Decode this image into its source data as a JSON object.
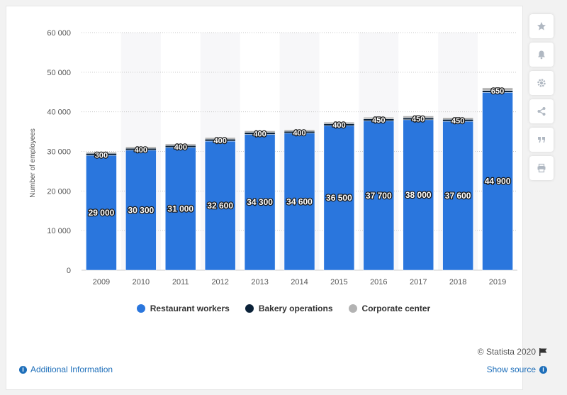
{
  "chart_data": {
    "type": "bar",
    "stacked": true,
    "categories": [
      "2009",
      "2010",
      "2011",
      "2012",
      "2013",
      "2014",
      "2015",
      "2016",
      "2017",
      "2018",
      "2019"
    ],
    "series": [
      {
        "name": "Restaurant workers",
        "color": "#2a76dd",
        "values": [
          29000,
          30300,
          31000,
          32600,
          34300,
          34600,
          36500,
          37700,
          38000,
          37600,
          44900
        ]
      },
      {
        "name": "Bakery operations",
        "color": "#0b2239",
        "values": [
          500,
          500,
          500,
          500,
          500,
          500,
          500,
          500,
          500,
          500,
          500
        ]
      },
      {
        "name": "Corporate center",
        "color": "#b3b3b3",
        "values": [
          300,
          400,
          400,
          400,
          400,
          400,
          400,
          450,
          450,
          450,
          650
        ]
      }
    ],
    "data_labels": {
      "restaurant": [
        "29 000",
        "30 300",
        "31 000",
        "32 600",
        "34 300",
        "34 600",
        "36 500",
        "37 700",
        "38 000",
        "37 600",
        "44 900"
      ],
      "corporate": [
        "300",
        "400",
        "400",
        "400",
        "400",
        "400",
        "400",
        "450",
        "450",
        "450",
        "650"
      ]
    },
    "ylabel": "Number of employees",
    "ylim": [
      0,
      60000
    ],
    "yticks": [
      0,
      10000,
      20000,
      30000,
      40000,
      50000,
      60000
    ],
    "ytick_labels": [
      "0",
      "10 000",
      "20 000",
      "30 000",
      "40 000",
      "50 000",
      "60 000"
    ],
    "grid": true,
    "legend_position": "bottom"
  },
  "legend": {
    "items": [
      {
        "label": "Restaurant workers",
        "color": "#2a76dd"
      },
      {
        "label": "Bakery operations",
        "color": "#0b2239"
      },
      {
        "label": "Corporate center",
        "color": "#b3b3b3"
      }
    ]
  },
  "footer": {
    "credit": "© Statista 2020",
    "additional_info": "Additional Information",
    "show_source": "Show source"
  },
  "sidebar": {
    "icons": [
      "star-icon",
      "bell-icon",
      "gear-icon",
      "share-icon",
      "quote-icon",
      "print-icon"
    ]
  }
}
